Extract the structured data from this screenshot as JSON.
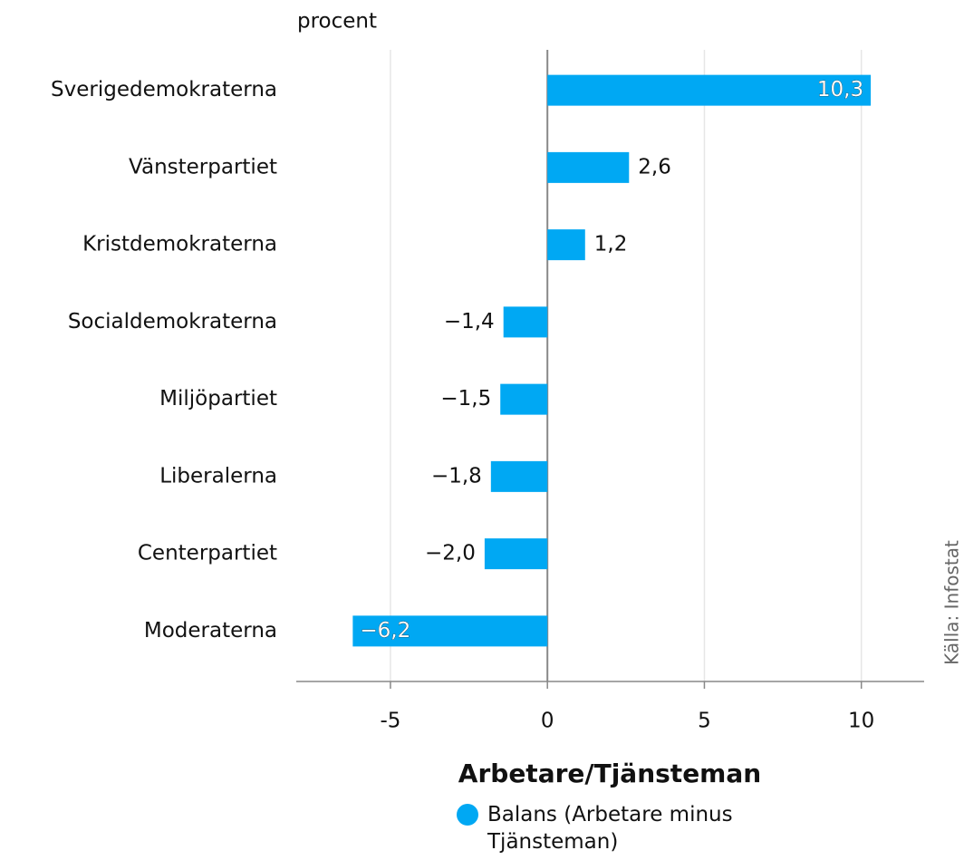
{
  "chart_data": {
    "type": "bar",
    "orientation": "horizontal",
    "title": "Arbetare/Tjänsteman",
    "unit_label": "procent",
    "source": "Källa: Infostat",
    "categories": [
      "Sverigedemokraterna",
      "Vänsterpartiet",
      "Kristdemokraterna",
      "Socialdemokraterna",
      "Miljöpartiet",
      "Liberalerna",
      "Centerpartiet",
      "Moderaterna"
    ],
    "series": [
      {
        "name": "Balans (Arbetare minus Tjänsteman)",
        "color": "#00a8f3",
        "values": [
          10.3,
          2.6,
          1.2,
          -1.4,
          -1.5,
          -1.8,
          -2.0,
          -6.2
        ],
        "value_labels": [
          "10,3",
          "2,6",
          "1,2",
          "−1,4",
          "−1,5",
          "−1,8",
          "−2,0",
          "−6,2"
        ]
      }
    ],
    "xlim": [
      -8,
      12
    ],
    "xticks": [
      -5,
      0,
      5,
      10
    ],
    "grid": true
  }
}
